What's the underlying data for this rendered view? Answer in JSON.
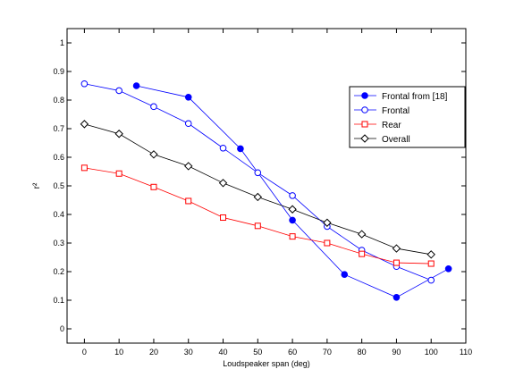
{
  "chart_data": {
    "type": "line",
    "title": "",
    "xlabel": "Loudspeaker span (deg)",
    "ylabel": "r²",
    "xlim": [
      -5,
      110
    ],
    "ylim": [
      -0.05,
      1.05
    ],
    "xticks": [
      0,
      10,
      20,
      30,
      40,
      50,
      60,
      70,
      80,
      90,
      100,
      110
    ],
    "yticks": [
      0,
      0.1,
      0.2,
      0.3,
      0.4,
      0.5,
      0.6,
      0.7,
      0.8,
      0.9,
      1
    ],
    "xtick_labels": [
      "0",
      "10",
      "20",
      "30",
      "40",
      "50",
      "60",
      "70",
      "80",
      "90",
      "100",
      "110"
    ],
    "ytick_labels": [
      "0",
      "0.1",
      "0.2",
      "0.3",
      "0.4",
      "0.5",
      "0.6",
      "0.7",
      "0.8",
      "0.9",
      "1"
    ],
    "grid": false,
    "legend_position": "top-right",
    "series": [
      {
        "name": "Frontal from [18]",
        "color": "#0000ff",
        "marker": "filled-circle",
        "x": [
          15,
          30,
          45,
          60,
          75,
          90,
          105
        ],
        "y": [
          0.85,
          0.81,
          0.63,
          0.38,
          0.19,
          0.11,
          0.21
        ]
      },
      {
        "name": "Frontal",
        "color": "#0000ff",
        "marker": "open-circle",
        "x": [
          0,
          10,
          20,
          30,
          40,
          50,
          60,
          70,
          80,
          90,
          100
        ],
        "y": [
          0.857,
          0.833,
          0.777,
          0.718,
          0.632,
          0.546,
          0.466,
          0.358,
          0.275,
          0.218,
          0.17
        ]
      },
      {
        "name": "Rear",
        "color": "#ff0000",
        "marker": "open-square",
        "x": [
          0,
          10,
          20,
          30,
          40,
          50,
          60,
          70,
          80,
          90,
          100
        ],
        "y": [
          0.563,
          0.543,
          0.496,
          0.447,
          0.389,
          0.36,
          0.323,
          0.3,
          0.262,
          0.231,
          0.228
        ]
      },
      {
        "name": "Overall",
        "color": "#000000",
        "marker": "open-diamond",
        "x": [
          0,
          10,
          20,
          30,
          40,
          50,
          60,
          70,
          80,
          90,
          100
        ],
        "y": [
          0.716,
          0.682,
          0.61,
          0.569,
          0.51,
          0.461,
          0.418,
          0.371,
          0.331,
          0.281,
          0.26
        ]
      }
    ]
  }
}
